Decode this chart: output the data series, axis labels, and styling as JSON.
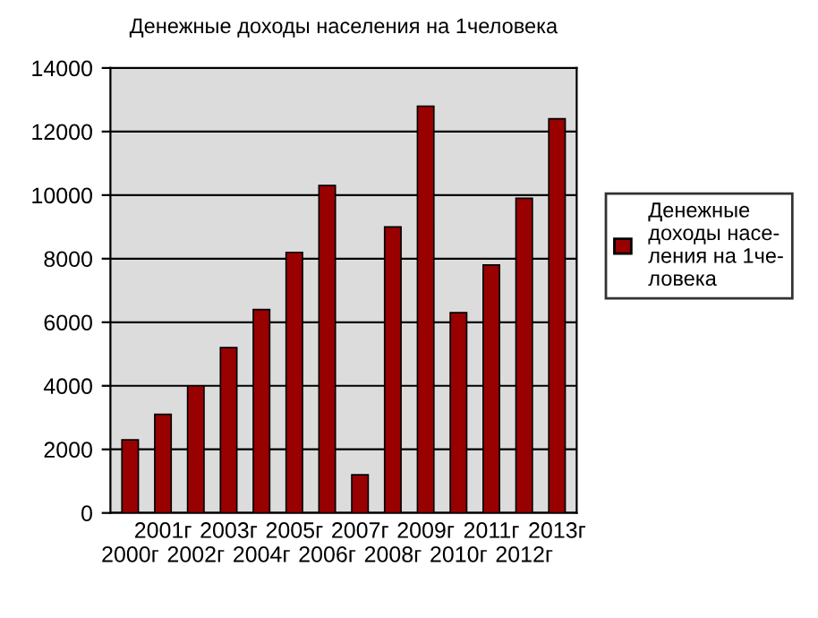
{
  "chart_data": {
    "type": "bar",
    "title": "Денежные доходы населения на 1человека",
    "categories": [
      "2000г",
      "2001г",
      "2002г",
      "2003г",
      "2004г",
      "2005г",
      "2006г",
      "2007г",
      "2008г",
      "2009г",
      "2010г",
      "2011г",
      "2012г",
      "2013г"
    ],
    "series": [
      {
        "name": "Денежные\nдоходы насе-\nления на 1че-\nловека",
        "color": "#990000",
        "values": [
          2300,
          3100,
          4000,
          5200,
          6400,
          8200,
          10300,
          1200,
          9000,
          12800,
          6300,
          7800,
          9900,
          12400
        ]
      }
    ],
    "ylim": [
      0,
      14000
    ],
    "yticks": [
      0,
      2000,
      4000,
      6000,
      8000,
      10000,
      12000,
      14000
    ],
    "grid": "y",
    "legend": "right"
  }
}
